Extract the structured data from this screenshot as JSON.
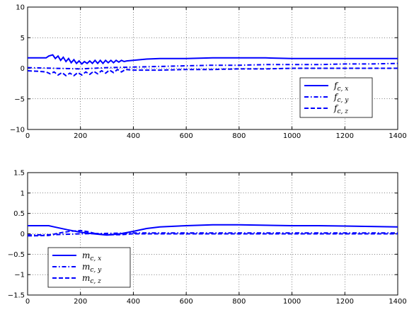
{
  "chart_data": [
    {
      "type": "line",
      "title": "",
      "xlabel": "",
      "ylabel": "",
      "xlim": [
        0,
        1400
      ],
      "ylim": [
        -10,
        10
      ],
      "x_ticks": [
        "0",
        "200",
        "400",
        "600",
        "800",
        "1000",
        "1200",
        "1400"
      ],
      "y_ticks": [
        "10",
        "5",
        "0",
        "−5",
        "−10"
      ],
      "grid": true,
      "legend_position": "lower-right",
      "series": [
        {
          "name": "f_{c,x}",
          "label_main": "f",
          "label_sub": "c, x",
          "style": "solid",
          "color": "#0000ff",
          "points": [
            [
              0,
              1.7
            ],
            [
              70,
              1.7
            ],
            [
              80,
              2.0
            ],
            [
              95,
              2.2
            ],
            [
              105,
              1.6
            ],
            [
              115,
              2.0
            ],
            [
              125,
              1.3
            ],
            [
              135,
              1.8
            ],
            [
              145,
              1.1
            ],
            [
              155,
              1.6
            ],
            [
              165,
              0.9
            ],
            [
              175,
              1.4
            ],
            [
              185,
              0.8
            ],
            [
              195,
              1.2
            ],
            [
              205,
              0.7
            ],
            [
              215,
              1.1
            ],
            [
              225,
              0.8
            ],
            [
              235,
              1.2
            ],
            [
              245,
              0.8
            ],
            [
              255,
              1.3
            ],
            [
              265,
              0.8
            ],
            [
              275,
              1.3
            ],
            [
              285,
              0.8
            ],
            [
              295,
              1.3
            ],
            [
              305,
              0.9
            ],
            [
              315,
              1.3
            ],
            [
              325,
              0.9
            ],
            [
              335,
              1.3
            ],
            [
              345,
              1.0
            ],
            [
              355,
              1.3
            ],
            [
              365,
              1.1
            ],
            [
              375,
              1.2
            ],
            [
              400,
              1.3
            ],
            [
              450,
              1.5
            ],
            [
              500,
              1.6
            ],
            [
              600,
              1.6
            ],
            [
              700,
              1.7
            ],
            [
              800,
              1.7
            ],
            [
              900,
              1.7
            ],
            [
              1000,
              1.6
            ],
            [
              1100,
              1.6
            ],
            [
              1200,
              1.6
            ],
            [
              1300,
              1.6
            ],
            [
              1400,
              1.6
            ]
          ]
        },
        {
          "name": "f_{c,y}",
          "label_main": "f",
          "label_sub": "c, y",
          "style": "dashdot",
          "color": "#0000ff",
          "points": [
            [
              0,
              0.1
            ],
            [
              100,
              0.0
            ],
            [
              200,
              -0.1
            ],
            [
              300,
              0.1
            ],
            [
              400,
              0.2
            ],
            [
              500,
              0.3
            ],
            [
              600,
              0.4
            ],
            [
              700,
              0.5
            ],
            [
              800,
              0.5
            ],
            [
              900,
              0.6
            ],
            [
              1000,
              0.6
            ],
            [
              1100,
              0.6
            ],
            [
              1200,
              0.7
            ],
            [
              1300,
              0.7
            ],
            [
              1400,
              0.8
            ]
          ]
        },
        {
          "name": "f_{c,z}",
          "label_main": "f",
          "label_sub": "c, z",
          "style": "dashed",
          "color": "#0000ff",
          "points": [
            [
              0,
              -0.4
            ],
            [
              40,
              -0.5
            ],
            [
              70,
              -0.6
            ],
            [
              85,
              -0.9
            ],
            [
              100,
              -0.6
            ],
            [
              115,
              -1.1
            ],
            [
              130,
              -0.7
            ],
            [
              145,
              -1.2
            ],
            [
              160,
              -0.8
            ],
            [
              175,
              -1.2
            ],
            [
              190,
              -0.7
            ],
            [
              205,
              -1.1
            ],
            [
              220,
              -0.6
            ],
            [
              235,
              -1.0
            ],
            [
              250,
              -0.5
            ],
            [
              265,
              -0.9
            ],
            [
              280,
              -0.4
            ],
            [
              295,
              -0.8
            ],
            [
              310,
              -0.3
            ],
            [
              325,
              -0.7
            ],
            [
              340,
              -0.2
            ],
            [
              355,
              -0.6
            ],
            [
              370,
              -0.2
            ],
            [
              400,
              -0.3
            ],
            [
              500,
              -0.3
            ],
            [
              600,
              -0.2
            ],
            [
              700,
              -0.2
            ],
            [
              800,
              -0.1
            ],
            [
              900,
              -0.1
            ],
            [
              1000,
              0.0
            ],
            [
              1100,
              0.0
            ],
            [
              1200,
              0.0
            ],
            [
              1300,
              0.0
            ],
            [
              1400,
              0.0
            ]
          ]
        }
      ]
    },
    {
      "type": "line",
      "title": "",
      "xlabel": "",
      "ylabel": "",
      "xlim": [
        0,
        1400
      ],
      "ylim": [
        -1.5,
        1.5
      ],
      "x_ticks": [
        "0",
        "200",
        "400",
        "600",
        "800",
        "1000",
        "1200",
        "1400"
      ],
      "y_ticks": [
        "1.5",
        "1",
        "0.5",
        "0",
        "−0.5",
        "−1",
        "−1.5"
      ],
      "grid": true,
      "legend_position": "lower-left",
      "series": [
        {
          "name": "m_{c,x}",
          "label_main": "m",
          "label_sub": "c, x",
          "style": "solid",
          "color": "#0000ff",
          "points": [
            [
              0,
              0.2
            ],
            [
              80,
              0.2
            ],
            [
              100,
              0.17
            ],
            [
              150,
              0.1
            ],
            [
              200,
              0.04
            ],
            [
              250,
              0.0
            ],
            [
              300,
              -0.03
            ],
            [
              350,
              0.0
            ],
            [
              400,
              0.06
            ],
            [
              450,
              0.13
            ],
            [
              500,
              0.17
            ],
            [
              600,
              0.2
            ],
            [
              700,
              0.22
            ],
            [
              800,
              0.22
            ],
            [
              900,
              0.21
            ],
            [
              1000,
              0.2
            ],
            [
              1100,
              0.2
            ],
            [
              1200,
              0.19
            ],
            [
              1300,
              0.18
            ],
            [
              1400,
              0.17
            ]
          ]
        },
        {
          "name": "m_{c,y}",
          "label_main": "m",
          "label_sub": "c, y",
          "style": "dashdot",
          "color": "#0000ff",
          "points": [
            [
              0,
              -0.03
            ],
            [
              100,
              -0.02
            ],
            [
              200,
              0.0
            ],
            [
              300,
              0.01
            ],
            [
              400,
              0.02
            ],
            [
              500,
              0.02
            ],
            [
              600,
              0.02
            ],
            [
              700,
              0.02
            ],
            [
              800,
              0.02
            ],
            [
              900,
              0.02
            ],
            [
              1000,
              0.02
            ],
            [
              1100,
              0.02
            ],
            [
              1200,
              0.02
            ],
            [
              1300,
              0.02
            ],
            [
              1400,
              0.02
            ]
          ]
        },
        {
          "name": "m_{c,z}",
          "label_main": "m",
          "label_sub": "c, z",
          "style": "dashed",
          "color": "#0000ff",
          "points": [
            [
              0,
              -0.05
            ],
            [
              80,
              -0.04
            ],
            [
              120,
              0.02
            ],
            [
              160,
              0.06
            ],
            [
              200,
              0.08
            ],
            [
              230,
              0.05
            ],
            [
              260,
              0.0
            ],
            [
              300,
              -0.02
            ],
            [
              350,
              -0.02
            ],
            [
              400,
              0.0
            ],
            [
              500,
              0.0
            ],
            [
              600,
              0.0
            ],
            [
              700,
              0.0
            ],
            [
              800,
              0.0
            ],
            [
              900,
              0.0
            ],
            [
              1000,
              0.0
            ],
            [
              1100,
              0.0
            ],
            [
              1200,
              0.0
            ],
            [
              1300,
              0.0
            ],
            [
              1400,
              0.0
            ]
          ]
        }
      ]
    }
  ]
}
